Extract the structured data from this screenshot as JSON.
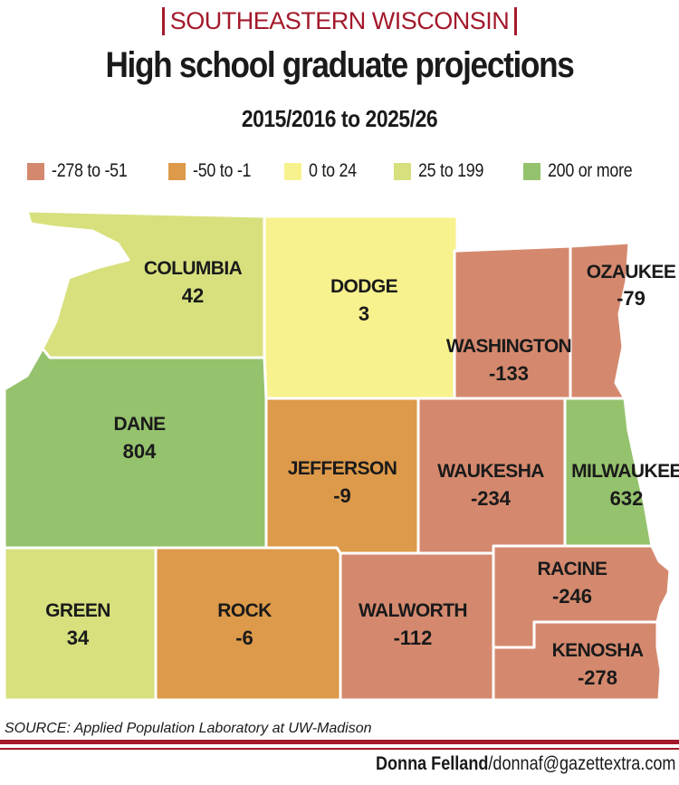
{
  "header": {
    "kicker": "SOUTHEASTERN WISCONSIN",
    "title": "High school graduate projections",
    "subtitle": "2015/2016 to 2025/26"
  },
  "legend": [
    {
      "label": "-278 to -51",
      "color": "#d4896e"
    },
    {
      "label": "-50 to -1",
      "color": "#dd9a4a"
    },
    {
      "label": "0 to 24",
      "color": "#f8f28e"
    },
    {
      "label": "25 to 199",
      "color": "#d7e07d"
    },
    {
      "label": "200 or more",
      "color": "#95c26d"
    }
  ],
  "counties": {
    "columbia": {
      "name": "COLUMBIA",
      "value": "42",
      "color": "#d7e07d"
    },
    "dodge": {
      "name": "DODGE",
      "value": "3",
      "color": "#f8f28e"
    },
    "washington": {
      "name": "WASHINGTON",
      "value": "-133",
      "color": "#d4896e"
    },
    "ozaukee": {
      "name": "OZAUKEE",
      "value": "-79",
      "color": "#d4896e"
    },
    "dane": {
      "name": "DANE",
      "value": "804",
      "color": "#95c26d"
    },
    "jefferson": {
      "name": "JEFFERSON",
      "value": "-9",
      "color": "#dd9a4a"
    },
    "waukesha": {
      "name": "WAUKESHA",
      "value": "-234",
      "color": "#d4896e"
    },
    "milwaukee": {
      "name": "MILWAUKEE",
      "value": "632",
      "color": "#95c26d"
    },
    "green": {
      "name": "GREEN",
      "value": "34",
      "color": "#d7e07d"
    },
    "rock": {
      "name": "ROCK",
      "value": "-6",
      "color": "#dd9a4a"
    },
    "walworth": {
      "name": "WALWORTH",
      "value": "-112",
      "color": "#d4896e"
    },
    "racine": {
      "name": "RACINE",
      "value": "-246",
      "color": "#d4896e"
    },
    "kenosha": {
      "name": "KENOSHA",
      "value": "-278",
      "color": "#d4896e"
    }
  },
  "footer": {
    "source": "SOURCE: Applied Population Laboratory at UW-Madison",
    "credit_name": "Donna Felland",
    "credit_email": "/donnaf@gazettextra.com"
  }
}
